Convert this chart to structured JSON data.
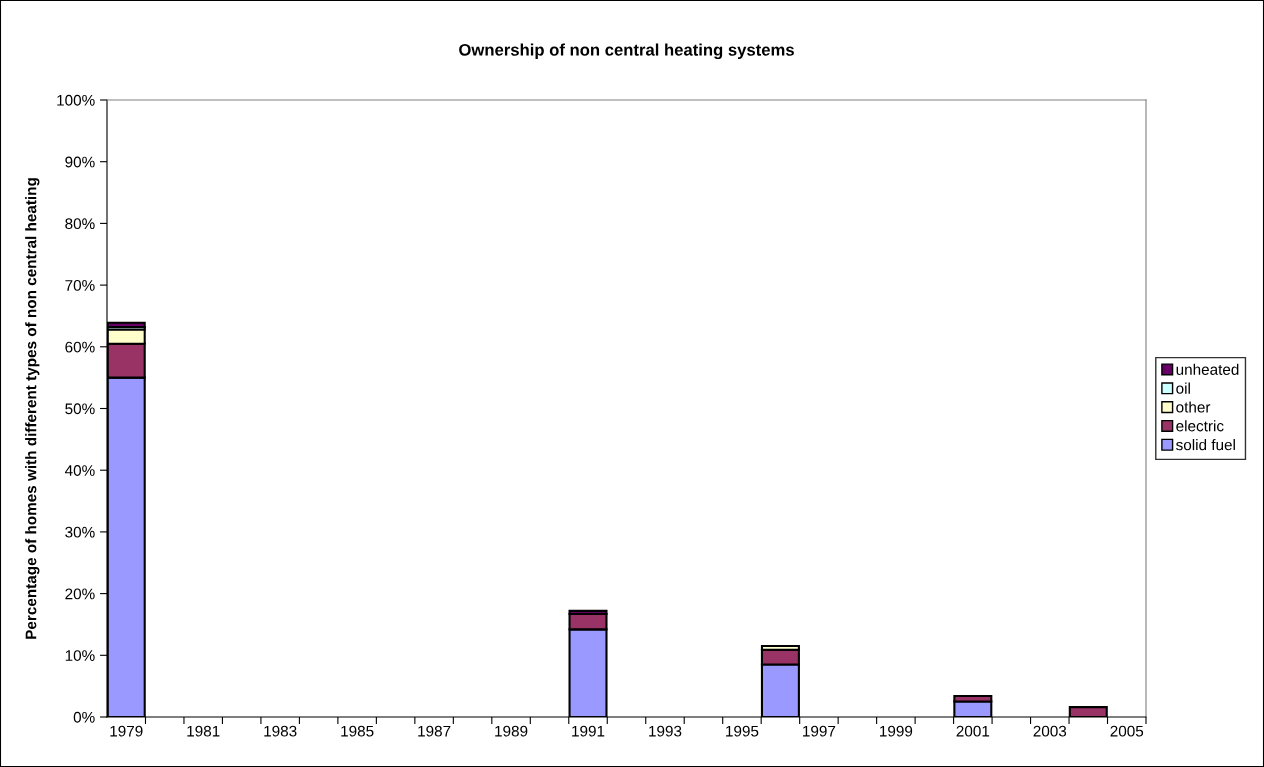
{
  "chart_data": {
    "type": "bar",
    "stacked": true,
    "title": "Ownership of non central heating systems",
    "ylabel": "Percentage of homes with different types of non central heating",
    "categories": [
      "1979",
      null,
      "1981",
      null,
      "1983",
      null,
      "1985",
      null,
      "1987",
      null,
      "1989",
      null,
      "1991",
      null,
      "1993",
      null,
      "1995",
      null,
      "1997",
      null,
      "1999",
      null,
      "2001",
      null,
      "2003",
      null,
      "2005"
    ],
    "series": [
      {
        "name": "solid fuel",
        "color": "#9999ff",
        "values": [
          55.0,
          null,
          null,
          null,
          null,
          null,
          null,
          null,
          null,
          null,
          null,
          null,
          14.2,
          null,
          null,
          null,
          null,
          8.5,
          null,
          null,
          null,
          null,
          2.5,
          null,
          null,
          null,
          null
        ]
      },
      {
        "name": "electric",
        "color": "#993366",
        "values": [
          5.5,
          null,
          null,
          null,
          null,
          null,
          null,
          null,
          null,
          null,
          null,
          null,
          2.5,
          null,
          null,
          null,
          null,
          2.4,
          null,
          null,
          null,
          null,
          0.9,
          null,
          null,
          1.6,
          null
        ]
      },
      {
        "name": "other",
        "color": "#ffffcc",
        "values": [
          2.3,
          null,
          null,
          null,
          null,
          null,
          null,
          null,
          null,
          null,
          null,
          null,
          null,
          null,
          null,
          null,
          null,
          0.6,
          null,
          null,
          null,
          null,
          null,
          null,
          null,
          null,
          null
        ]
      },
      {
        "name": "oil",
        "color": "#ccffff",
        "values": [
          0.4,
          null,
          null,
          null,
          null,
          null,
          null,
          null,
          null,
          null,
          null,
          null,
          null,
          null,
          null,
          null,
          null,
          null,
          null,
          null,
          null,
          null,
          null,
          null,
          null,
          null,
          null
        ]
      },
      {
        "name": "unheated",
        "color": "#660066",
        "values": [
          0.7,
          null,
          null,
          null,
          null,
          null,
          null,
          null,
          null,
          null,
          null,
          null,
          0.5,
          null,
          null,
          null,
          null,
          null,
          null,
          null,
          null,
          null,
          null,
          null,
          null,
          null,
          null
        ]
      }
    ],
    "ylim": [
      0,
      100
    ],
    "yticks": [
      {
        "value": 0,
        "label": "0%"
      },
      {
        "value": 10,
        "label": "10%"
      },
      {
        "value": 20,
        "label": "20%"
      },
      {
        "value": 30,
        "label": "30%"
      },
      {
        "value": 40,
        "label": "40%"
      },
      {
        "value": 50,
        "label": "50%"
      },
      {
        "value": 60,
        "label": "60%"
      },
      {
        "value": 70,
        "label": "70%"
      },
      {
        "value": 80,
        "label": "80%"
      },
      {
        "value": 90,
        "label": "90%"
      },
      {
        "value": 100,
        "label": "100%"
      }
    ],
    "grid": false,
    "legend": "right"
  }
}
